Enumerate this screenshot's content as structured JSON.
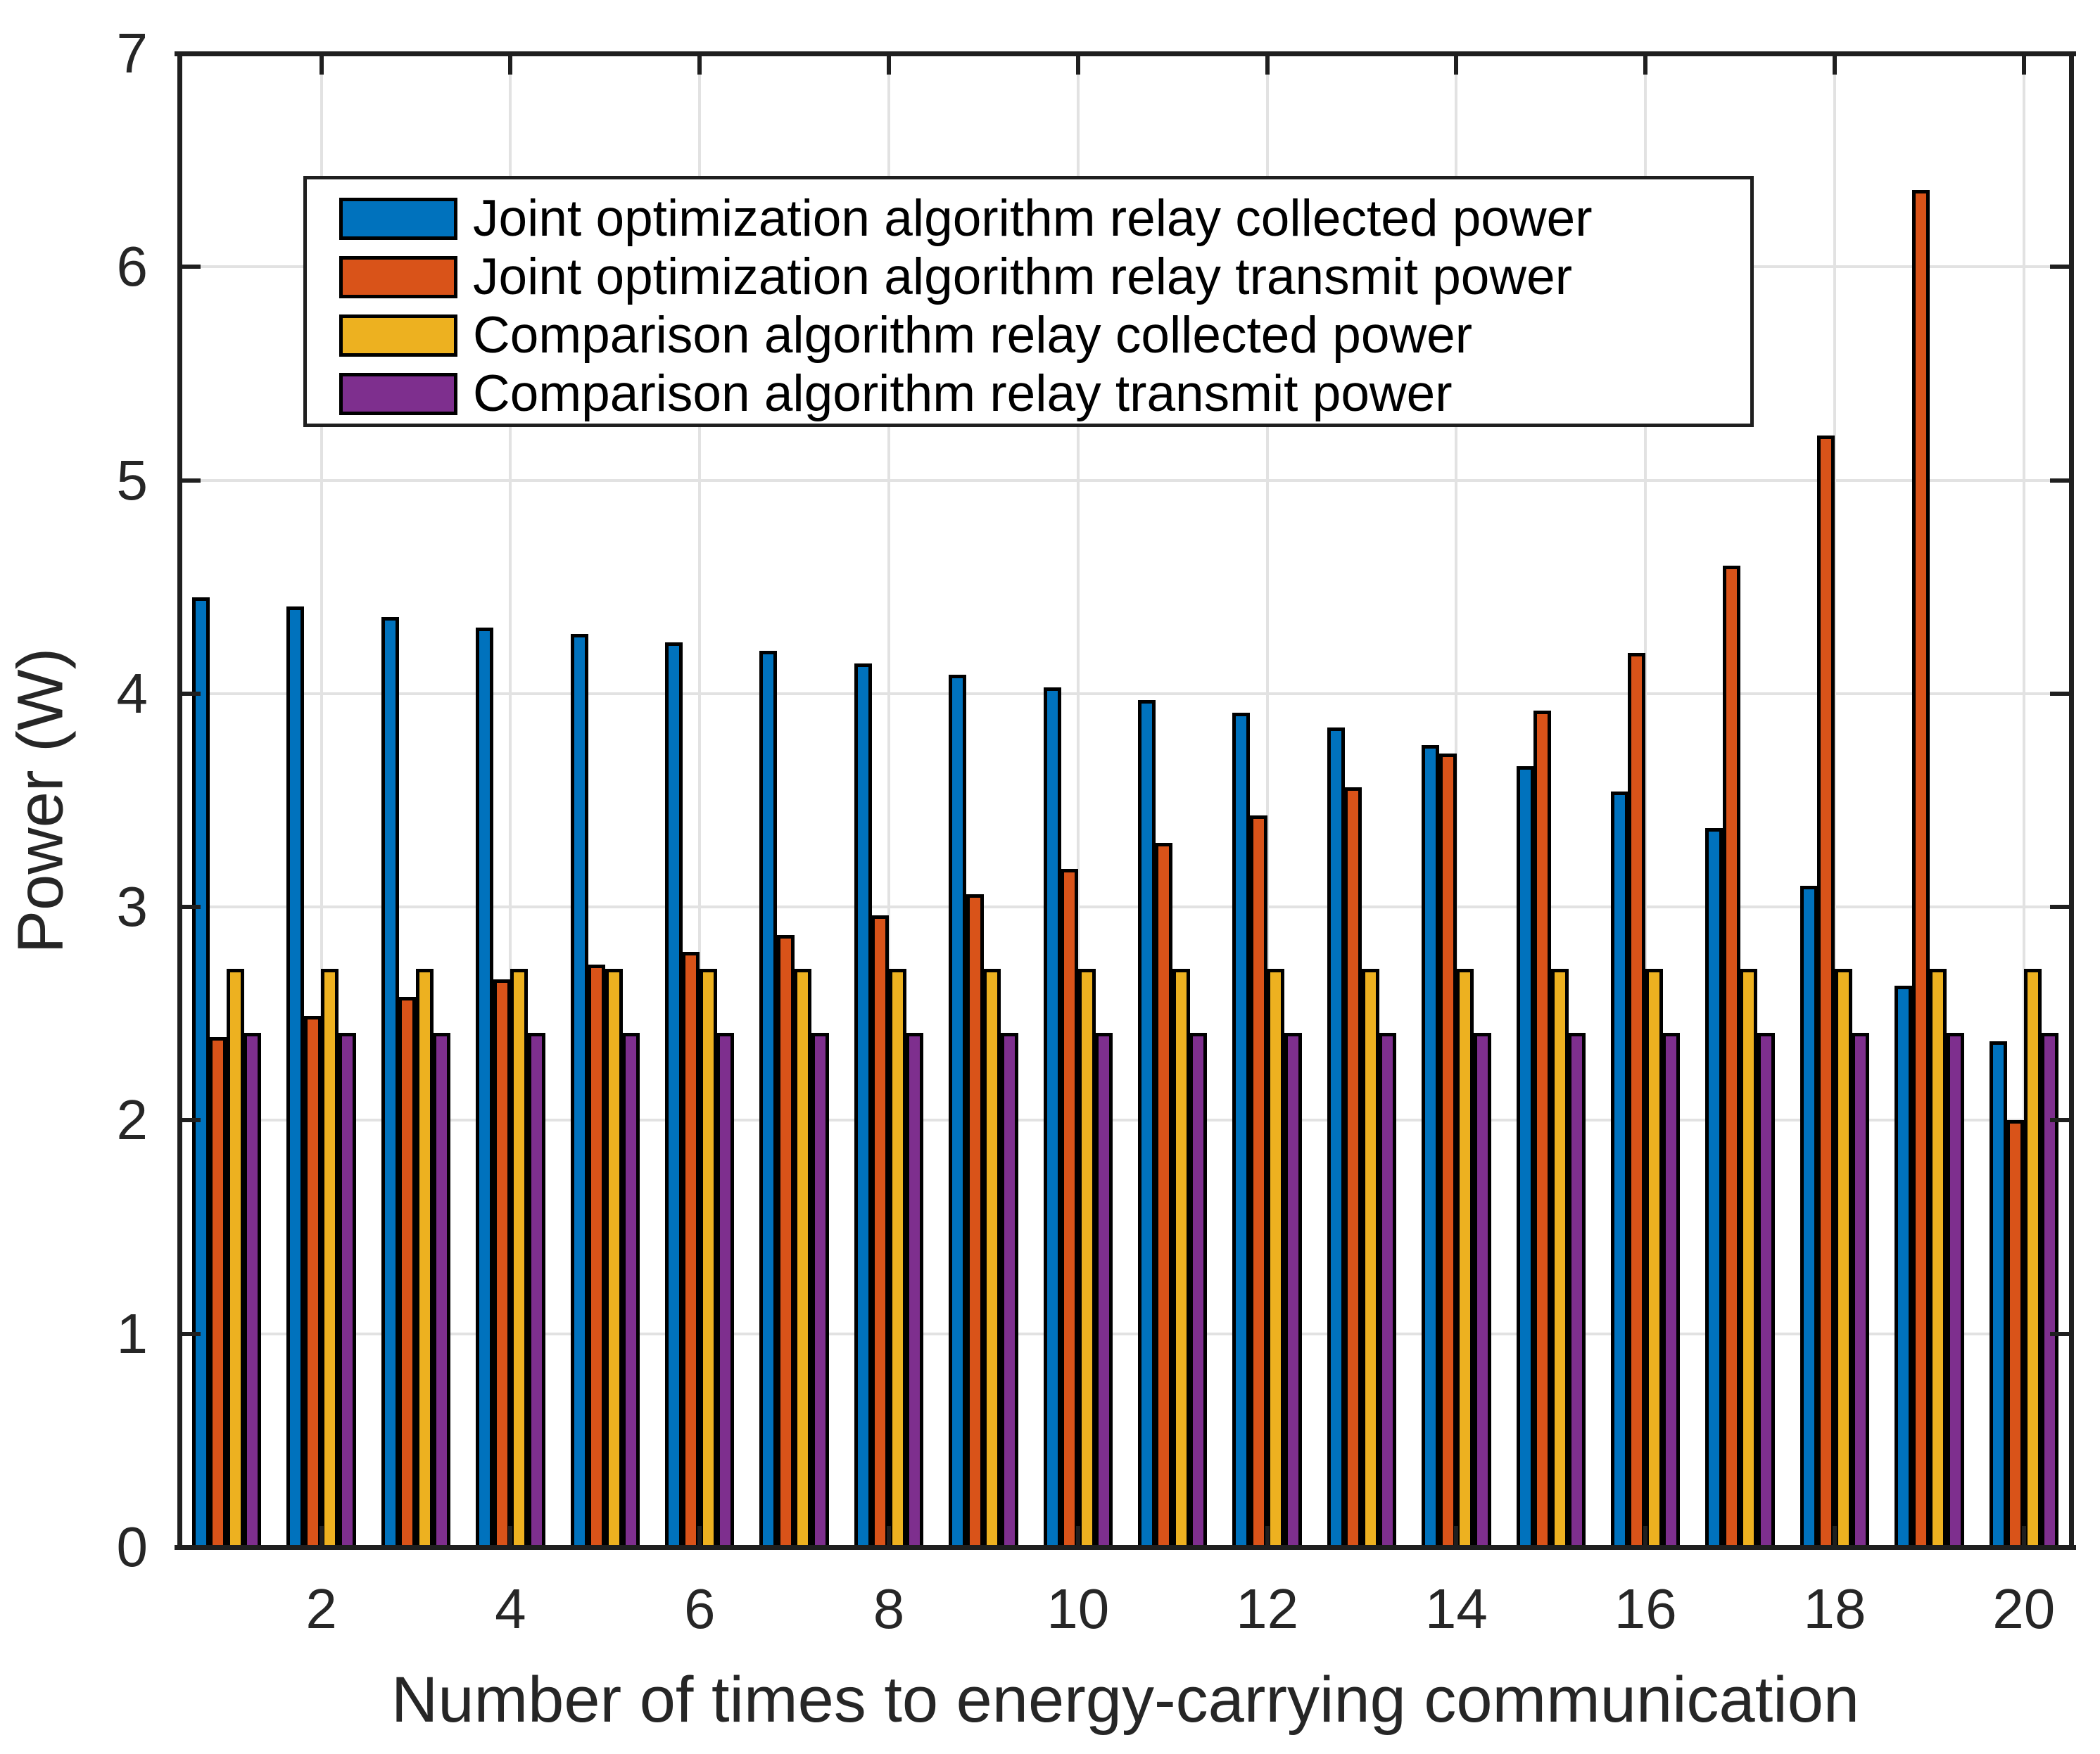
{
  "figure": {
    "background": "#ffffff"
  },
  "chart_data": {
    "type": "bar",
    "title": "",
    "xlabel": "Number of times to energy-carrying communication",
    "ylabel": "Power (W)",
    "xlim": [
      0.5,
      20.5
    ],
    "ylim": [
      0,
      7
    ],
    "xticks": [
      2,
      4,
      6,
      8,
      10,
      12,
      14,
      16,
      18,
      20
    ],
    "yticks": [
      0,
      1,
      2,
      3,
      4,
      5,
      6,
      7
    ],
    "grid": true,
    "legend_position": "upper-left-inside",
    "bar_group_width": 0.727,
    "bar_edge_color": "#000000",
    "grid_color": "#e2e2e2",
    "axis_color": "#1f1f1f",
    "tick_label_color": "#262626",
    "categories": [
      1,
      2,
      3,
      4,
      5,
      6,
      7,
      8,
      9,
      10,
      11,
      12,
      13,
      14,
      15,
      16,
      17,
      18,
      19,
      20
    ],
    "series": [
      {
        "name": "Joint optimization algorithm relay collected power",
        "color": "#0072BD",
        "values": [
          4.45,
          4.41,
          4.36,
          4.31,
          4.28,
          4.24,
          4.2,
          4.14,
          4.09,
          4.03,
          3.97,
          3.91,
          3.84,
          3.76,
          3.66,
          3.54,
          3.37,
          3.1,
          2.63,
          2.37
        ]
      },
      {
        "name": "Joint optimization algorithm relay transmit power",
        "color": "#D95319",
        "values": [
          2.39,
          2.49,
          2.58,
          2.66,
          2.73,
          2.79,
          2.87,
          2.96,
          3.06,
          3.18,
          3.3,
          3.43,
          3.56,
          3.72,
          3.92,
          4.19,
          4.6,
          5.21,
          6.36,
          2.0
        ]
      },
      {
        "name": "Comparison algorithm relay collected power",
        "color": "#EDB120",
        "values": [
          2.71,
          2.71,
          2.71,
          2.71,
          2.71,
          2.71,
          2.71,
          2.71,
          2.71,
          2.71,
          2.71,
          2.71,
          2.71,
          2.71,
          2.71,
          2.71,
          2.71,
          2.71,
          2.71,
          2.71
        ]
      },
      {
        "name": "Comparison algorithm relay transmit power",
        "color": "#7E2F8E",
        "values": [
          2.41,
          2.41,
          2.41,
          2.41,
          2.41,
          2.41,
          2.41,
          2.41,
          2.41,
          2.41,
          2.41,
          2.41,
          2.41,
          2.41,
          2.41,
          2.41,
          2.41,
          2.41,
          2.41,
          2.41
        ]
      }
    ]
  },
  "layout_note_values_in_watts": true
}
